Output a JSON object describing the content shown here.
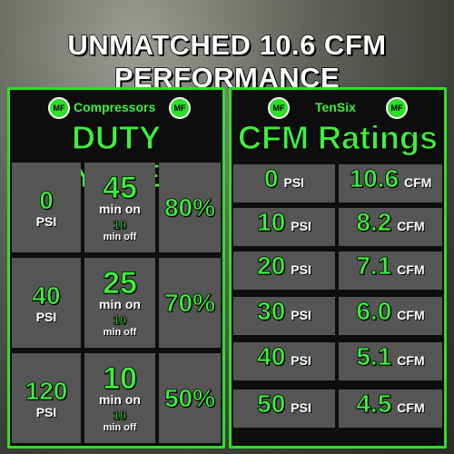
{
  "title": "UNMATCHED 10.6 CFM PERFORMANCE",
  "left_panel": {
    "logo": "MF",
    "brand": "Compressors",
    "heading": "DUTY CYCLES",
    "rows": [
      {
        "pressure": "0",
        "pressure_unit": "PSI",
        "on": "45",
        "on_label": "min on",
        "off": "10",
        "off_label": "min off",
        "percent": "80%"
      },
      {
        "pressure": "40",
        "pressure_unit": "PSI",
        "on": "25",
        "on_label": "min on",
        "off": "10",
        "off_label": "min off",
        "percent": "70%"
      },
      {
        "pressure": "120",
        "pressure_unit": "PSI",
        "on": "10",
        "on_label": "min on",
        "off": "10",
        "off_label": "min off",
        "percent": "50%"
      }
    ]
  },
  "right_panel": {
    "logo": "MF",
    "brand": "TenSix",
    "heading": "CFM Ratings",
    "rows": [
      {
        "pressure": "0",
        "pressure_unit": "PSI",
        "flow": "10.6",
        "flow_unit": "CFM"
      },
      {
        "pressure": "10",
        "pressure_unit": "PSI",
        "flow": "8.2",
        "flow_unit": "CFM"
      },
      {
        "pressure": "20",
        "pressure_unit": "PSI",
        "flow": "7.1",
        "flow_unit": "CFM"
      },
      {
        "pressure": "30",
        "pressure_unit": "PSI",
        "flow": "6.0",
        "flow_unit": "CFM"
      },
      {
        "pressure": "40",
        "pressure_unit": "PSI",
        "flow": "5.1",
        "flow_unit": "CFM"
      },
      {
        "pressure": "50",
        "pressure_unit": "PSI",
        "flow": "4.5",
        "flow_unit": "CFM"
      }
    ]
  }
}
